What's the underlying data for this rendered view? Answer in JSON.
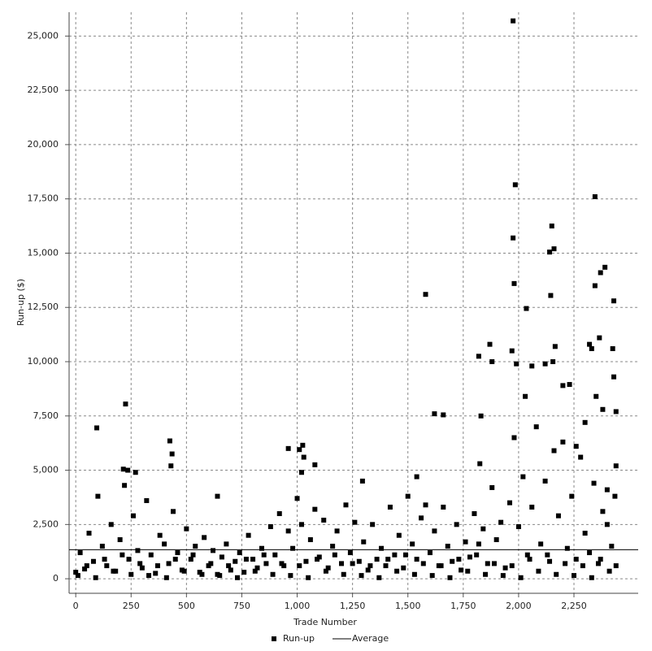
{
  "chart_data": {
    "type": "scatter",
    "x_label": "Trade Number",
    "y_label": "Run-up ($)",
    "xlim": [
      -30,
      2540
    ],
    "ylim": [
      -670,
      26100
    ],
    "xticks": [
      0,
      250,
      500,
      750,
      {
        "value": 1000,
        "label": "1,000"
      },
      {
        "value": 1250,
        "label": "1,250"
      },
      {
        "value": 1500,
        "label": "1,500"
      },
      {
        "value": 1750,
        "label": "1,750"
      },
      {
        "value": 2000,
        "label": "2,000"
      },
      {
        "value": 2250,
        "label": "2,250"
      }
    ],
    "yticks": [
      0,
      {
        "value": 2500,
        "label": "2,500"
      },
      {
        "value": 5000,
        "label": "5,000"
      },
      {
        "value": 7500,
        "label": "7,500"
      },
      {
        "value": 10000,
        "label": "10,000"
      },
      {
        "value": 12500,
        "label": "12,500"
      },
      {
        "value": 15000,
        "label": "15,000"
      },
      {
        "value": 17500,
        "label": "17,500"
      },
      {
        "value": 20000,
        "label": "20,000"
      },
      {
        "value": 22500,
        "label": "22,500"
      },
      {
        "value": 25000,
        "label": "25,000"
      }
    ],
    "grid": true,
    "average": {
      "name": "Average",
      "value": 1340,
      "color": "#000000"
    },
    "series": [
      {
        "name": "Run-up",
        "color": "#000000",
        "x": [
          95,
          225,
          215,
          235,
          270,
          425,
          435,
          430,
          640,
          960,
          1010,
          1025,
          1030,
          1020,
          1080,
          1295,
          1580,
          1540,
          1620,
          1660,
          1820,
          1830,
          1825,
          1870,
          1880,
          1975,
          1985,
          1975,
          1980,
          1970,
          1990,
          2035,
          2030,
          2060,
          2150,
          2160,
          2140,
          2145,
          2155,
          2165,
          2120,
          2200,
          2230,
          2260,
          2320,
          2330,
          2345,
          2345,
          2370,
          2390,
          2365,
          2430,
          2425,
          2430,
          2440,
          2440,
          2435,
          2400,
          2350,
          2380,
          2300,
          0,
          20,
          40,
          60,
          80,
          100,
          120,
          140,
          160,
          180,
          200,
          220,
          240,
          260,
          280,
          300,
          320,
          340,
          360,
          380,
          400,
          420,
          440,
          460,
          480,
          500,
          520,
          540,
          560,
          580,
          600,
          620,
          640,
          660,
          680,
          700,
          720,
          740,
          760,
          780,
          800,
          820,
          840,
          860,
          880,
          900,
          920,
          940,
          960,
          980,
          1000,
          1020,
          1040,
          1060,
          1080,
          1100,
          1120,
          1140,
          1160,
          1180,
          1200,
          1220,
          1240,
          1260,
          1280,
          1300,
          1320,
          1340,
          1360,
          1380,
          1400,
          1420,
          1440,
          1460,
          1480,
          1500,
          1520,
          1540,
          1560,
          1580,
          1600,
          1620,
          1640,
          1660,
          1680,
          1700,
          1720,
          1740,
          1760,
          1780,
          1800,
          1820,
          1840,
          1860,
          1880,
          1900,
          1920,
          1940,
          1960,
          1980,
          2000,
          2020,
          2040,
          2060,
          2080,
          2100,
          2120,
          2140,
          2160,
          2180,
          2200,
          2220,
          2240,
          2260,
          2280,
          2300,
          2320,
          2340,
          2360,
          2380,
          2400,
          2420,
          2440,
          10,
          50,
          90,
          130,
          170,
          210,
          250,
          290,
          330,
          370,
          410,
          450,
          490,
          530,
          570,
          610,
          650,
          690,
          730,
          770,
          810,
          850,
          890,
          930,
          970,
          1010,
          1050,
          1090,
          1130,
          1170,
          1210,
          1250,
          1290,
          1330,
          1370,
          1410,
          1450,
          1490,
          1530,
          1570,
          1610,
          1650,
          1690,
          1730,
          1770,
          1810,
          1850,
          1890,
          1930,
          1970,
          2010,
          2050,
          2090,
          2130,
          2170,
          2210,
          2250,
          2290,
          2330,
          2370,
          2410
        ],
        "values": [
          6950,
          8050,
          5050,
          5000,
          4900,
          6350,
          5750,
          5200,
          3800,
          6000,
          5950,
          6150,
          5600,
          4900,
          5250,
          4500,
          13100,
          4700,
          7600,
          7550,
          10250,
          7500,
          5300,
          10800,
          10000,
          25700,
          18150,
          15700,
          13600,
          10500,
          9900,
          12450,
          8400,
          9800,
          16250,
          15200,
          15050,
          13050,
          10000,
          10700,
          9900,
          8900,
          8950,
          6100,
          10800,
          10600,
          17600,
          13500,
          14100,
          14350,
          11100,
          12800,
          10600,
          9300,
          7700,
          5200,
          3800,
          4100,
          8400,
          7800,
          7200,
          300,
          1200,
          450,
          2100,
          800,
          3800,
          1500,
          600,
          2500,
          350,
          1800,
          4300,
          900,
          2900,
          1300,
          500,
          3600,
          1100,
          250,
          2000,
          1600,
          700,
          3100,
          1200,
          400,
          2300,
          900,
          1500,
          300,
          1900,
          600,
          1300,
          200,
          1000,
          1600,
          400,
          800,
          1200,
          300,
          2000,
          900,
          500,
          1400,
          700,
          2400,
          1100,
          3000,
          600,
          2200,
          1400,
          3700,
          2500,
          800,
          1800,
          3200,
          1000,
          2700,
          500,
          1500,
          2200,
          700,
          3400,
          1200,
          2600,
          800,
          1700,
          400,
          2500,
          900,
          1400,
          600,
          3300,
          1100,
          2000,
          500,
          3800,
          1600,
          900,
          2800,
          3400,
          1200,
          2200,
          600,
          3300,
          1500,
          800,
          2500,
          400,
          1700,
          1000,
          3000,
          1600,
          2300,
          700,
          4200,
          1800,
          2600,
          500,
          3500,
          6500,
          2400,
          4700,
          1100,
          3300,
          7000,
          1600,
          4500,
          800,
          5900,
          2900,
          6300,
          1400,
          3800,
          900,
          5600,
          2100,
          1200,
          4400,
          700,
          3100,
          2500,
          1500,
          600,
          150,
          600,
          50,
          900,
          350,
          1100,
          200,
          700,
          150,
          600,
          50,
          900,
          350,
          1100,
          200,
          700,
          150,
          600,
          50,
          900,
          350,
          1100,
          200,
          700,
          150,
          600,
          50,
          900,
          350,
          1100,
          200,
          700,
          150,
          600,
          50,
          900,
          350,
          1100,
          200,
          700,
          150,
          600,
          50,
          900,
          350,
          1100,
          200,
          700,
          150,
          600,
          50,
          900,
          350,
          1100,
          200,
          700,
          150,
          600,
          50,
          900,
          350
        ]
      }
    ]
  }
}
